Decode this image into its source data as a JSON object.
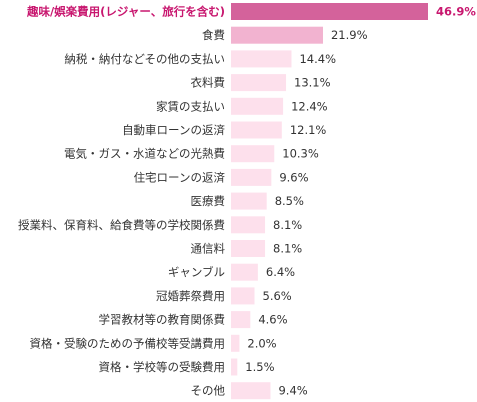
{
  "chart_data": {
    "type": "bar",
    "orientation": "horizontal",
    "categories": [
      "趣味/娯楽費用(レジャー、旅行を含む)",
      "食費",
      "納税・納付などその他の支払い",
      "衣料費",
      "家賃の支払い",
      "自動車ローンの返済",
      "電気・ガス・水道などの光熱費",
      "住宅ローンの返済",
      "医療費",
      "授業料、保育料、給食費等の学校関係費",
      "通信料",
      "ギャンブル",
      "冠婚葬祭費用",
      "学習教材等の教育関係費",
      "資格・受験のための予備校等受講費用",
      "資格・学校等の受験費用",
      "その他"
    ],
    "values": [
      46.9,
      21.9,
      14.4,
      13.1,
      12.4,
      12.1,
      10.3,
      9.6,
      8.5,
      8.1,
      8.1,
      6.4,
      5.6,
      4.6,
      2.0,
      1.5,
      9.4
    ],
    "value_labels": [
      "46.9%",
      "21.9%",
      "14.4%",
      "13.1%",
      "12.4%",
      "12.1%",
      "10.3%",
      "9.6%",
      "8.5%",
      "8.1%",
      "8.1%",
      "6.4%",
      "5.6%",
      "4.6%",
      "2.0%",
      "1.5%",
      "9.4%"
    ],
    "unit": "%",
    "xlim": [
      0,
      46.9
    ],
    "grid": false,
    "legend": "none",
    "colors": {
      "bar_top": "#d4629b",
      "bar_second": "#f2b3d0",
      "bar_rest": "#fde0ec",
      "highlight_text": "#c8176f",
      "text": "#333333"
    }
  }
}
